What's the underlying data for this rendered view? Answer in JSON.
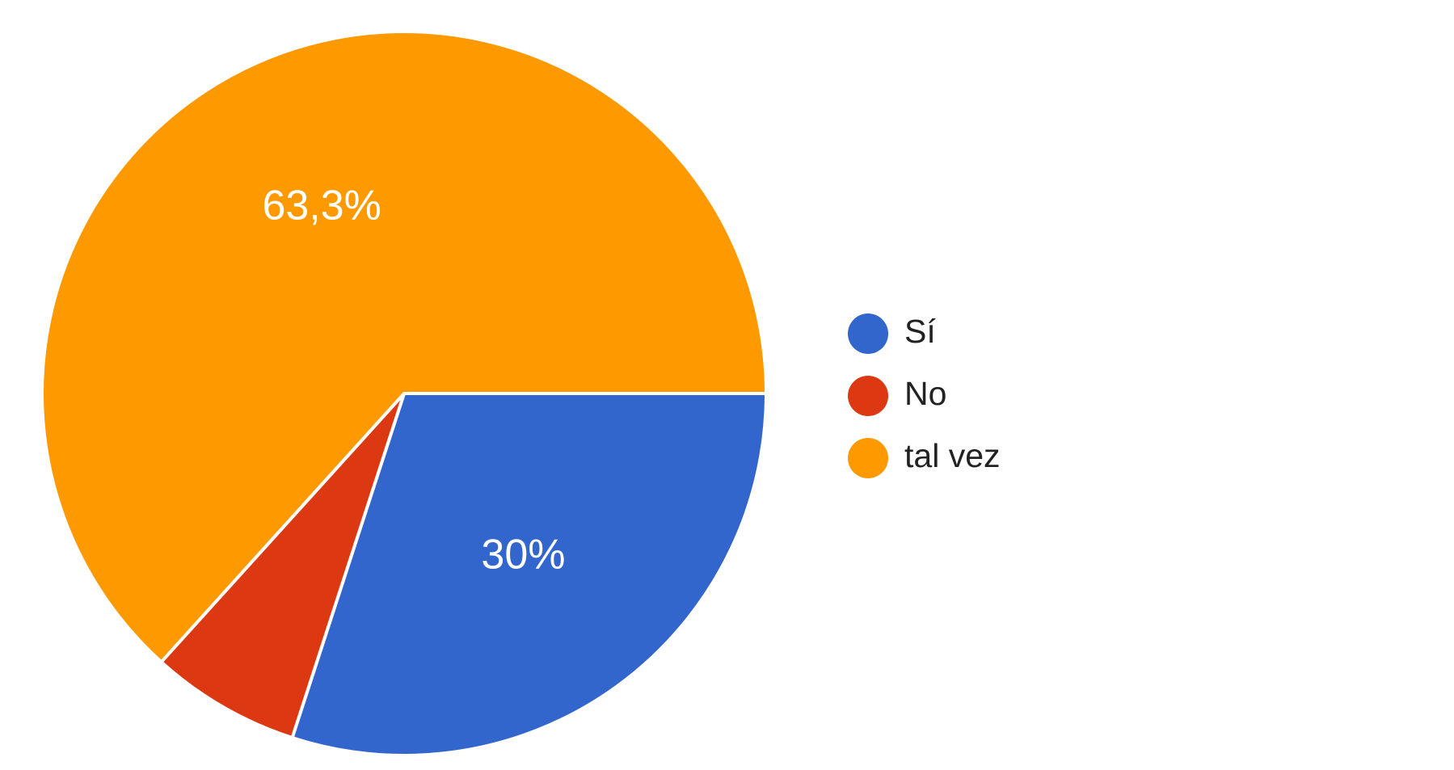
{
  "chart_data": {
    "type": "pie",
    "categories": [
      "Sí",
      "No",
      "tal vez"
    ],
    "values": [
      30,
      6.7,
      63.3
    ],
    "labels": [
      "30%",
      "",
      "63,3%"
    ],
    "colors": [
      "#3366cc",
      "#dc3912",
      "#ff9900"
    ],
    "legend_position": "right",
    "start": "3 o'clock, clockwise"
  }
}
